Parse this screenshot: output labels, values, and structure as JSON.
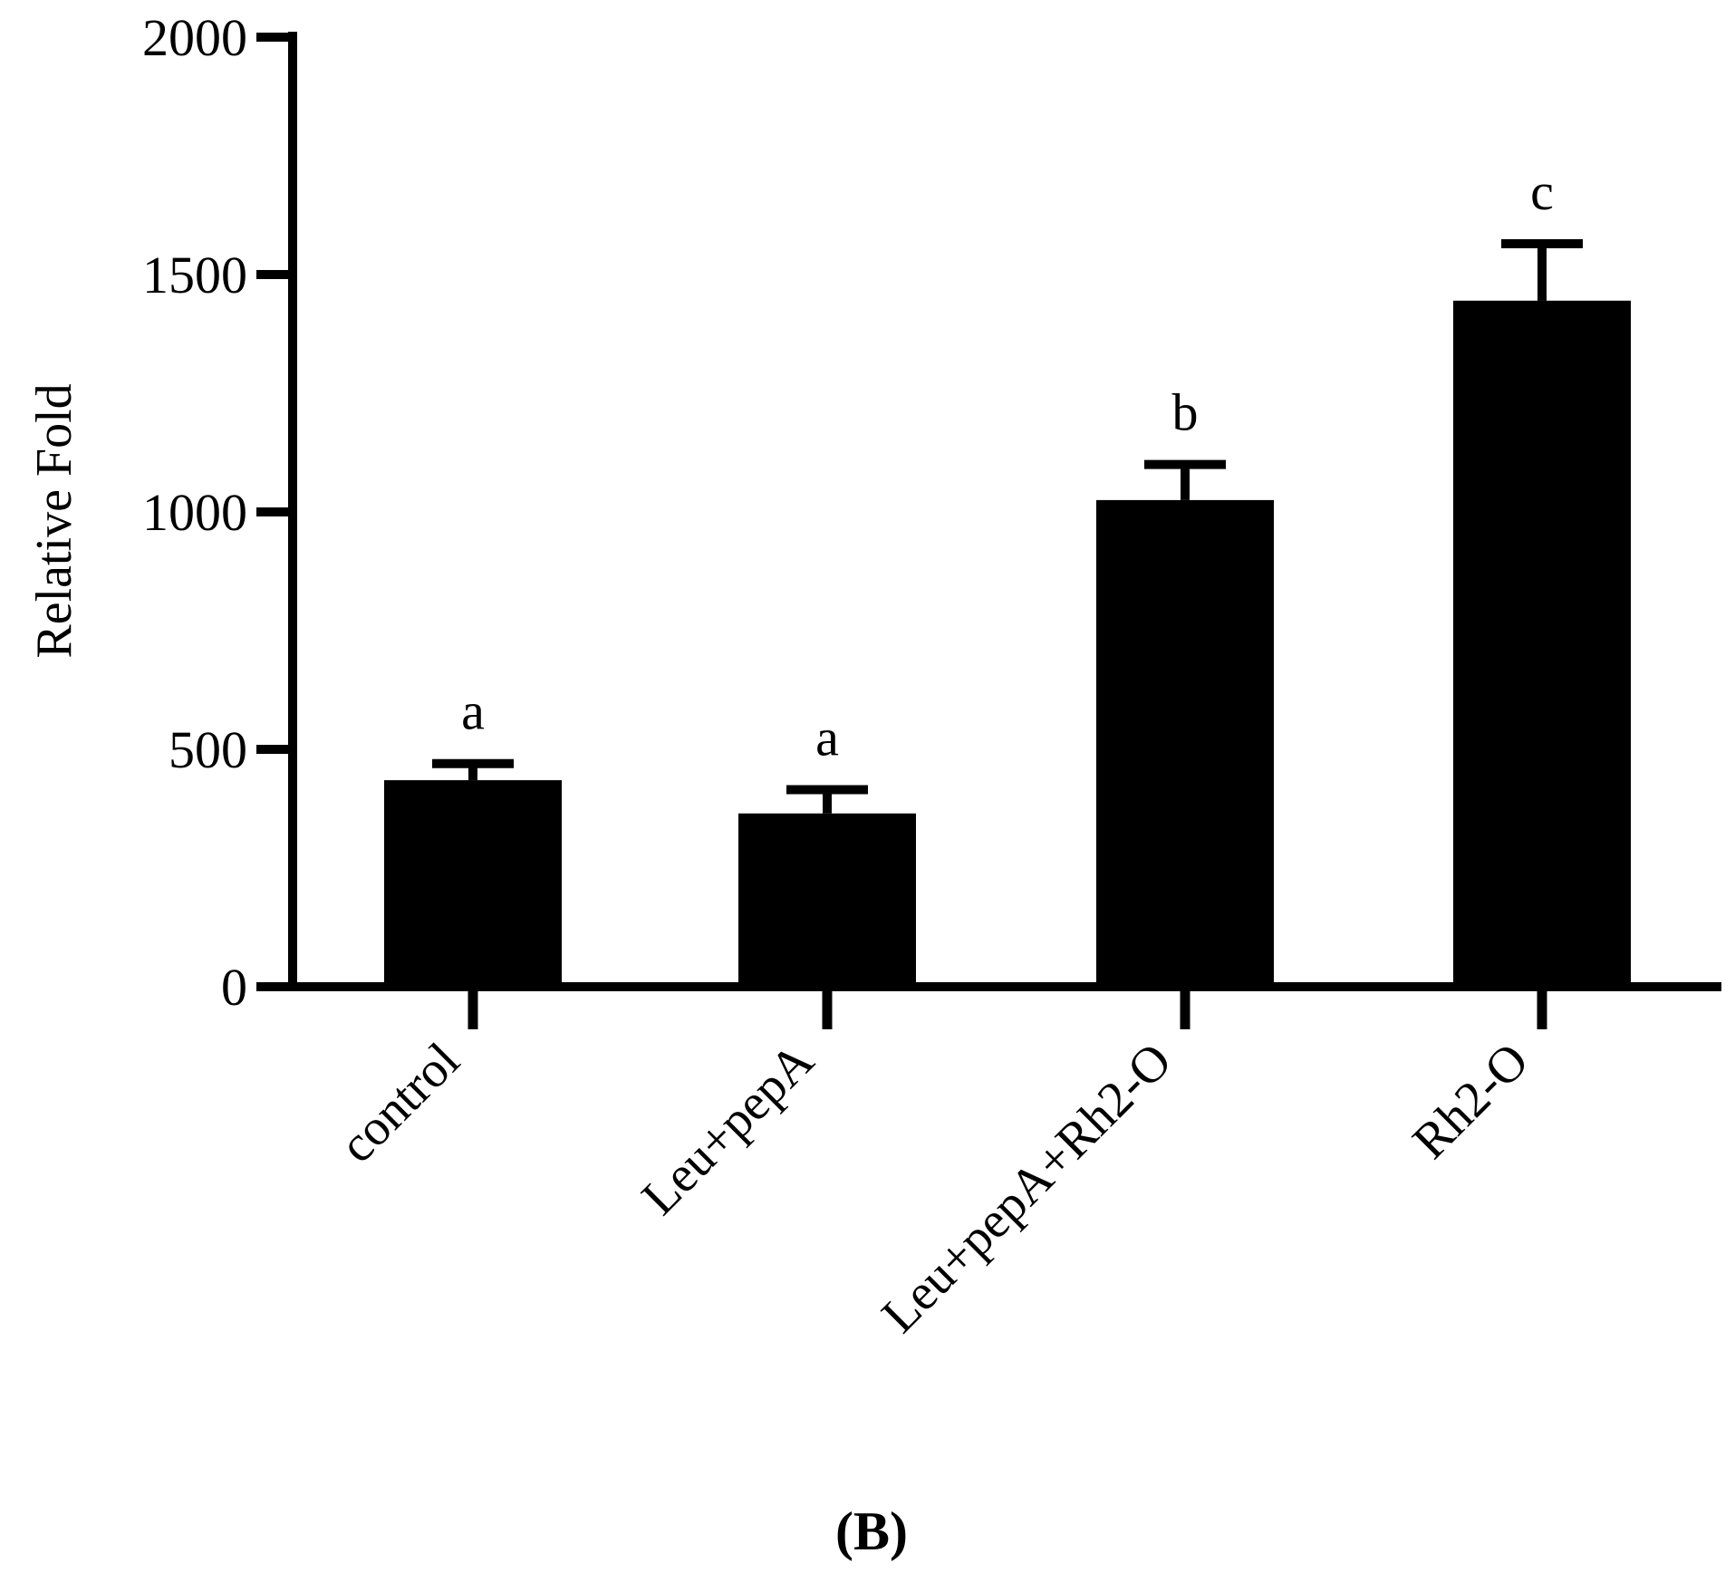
{
  "chart_data": {
    "type": "bar",
    "categories": [
      "control",
      "Leu+pepA",
      "Leu+pepA+Rh2-O",
      "Rh2-O"
    ],
    "values": [
      435,
      365,
      1025,
      1445
    ],
    "error_upper": [
      470,
      415,
      1100,
      1565
    ],
    "significance_letters": [
      "a",
      "a",
      "b",
      "c"
    ],
    "ylabel": "Relative Fold",
    "xlabel": "",
    "ylim": [
      0,
      2000
    ],
    "yticks": [
      0,
      500,
      1000,
      1500,
      2000
    ],
    "grid": false,
    "legend": "none",
    "panel_label": "(B)",
    "colors": {
      "bar": "#000000",
      "axis": "#000000",
      "background": "#ffffff"
    }
  }
}
